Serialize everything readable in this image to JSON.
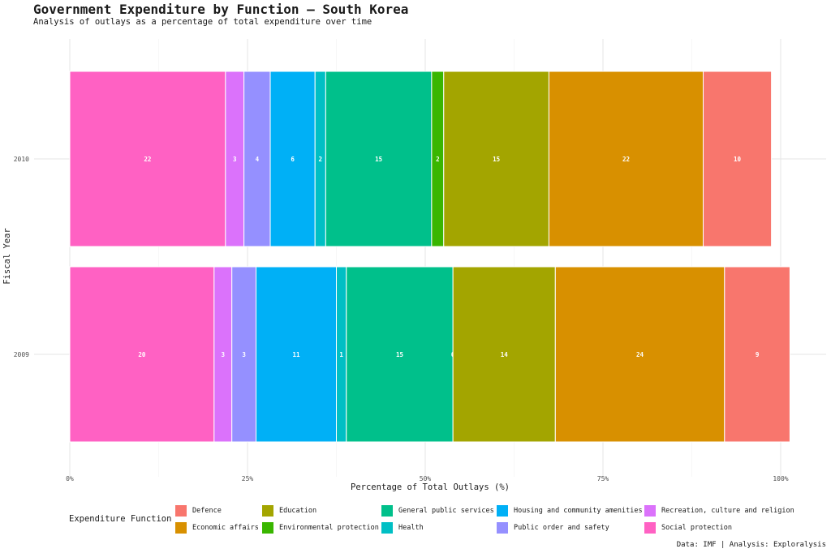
{
  "chart_data": {
    "type": "bar",
    "orientation": "horizontal",
    "stacked": true,
    "title": "Government Expenditure by Function — South Korea",
    "subtitle": "Analysis of outlays as a percentage of total expenditure over time",
    "xlabel": "Percentage of Total Outlays (%)",
    "ylabel": "Fiscal Year",
    "xlim": [
      0,
      100
    ],
    "x_ticks": [
      "0%",
      "25%",
      "50%",
      "75%",
      "100%"
    ],
    "grid": true,
    "categories": [
      "2010",
      "2009"
    ],
    "series": [
      {
        "name": "Social protection",
        "color": "#FF61C3",
        "values": [
          21.9,
          20.3
        ],
        "labels": [
          "22",
          "20"
        ]
      },
      {
        "name": "Recreation, culture and religion",
        "color": "#DB72FB",
        "values": [
          2.6,
          2.5
        ],
        "labels": [
          "3",
          "3"
        ]
      },
      {
        "name": "Public order and safety",
        "color": "#9590FF",
        "values": [
          3.7,
          3.4
        ],
        "labels": [
          "4",
          "3"
        ]
      },
      {
        "name": "Housing and community amenities",
        "color": "#00B0F6",
        "values": [
          6.3,
          11.3
        ],
        "labels": [
          "6",
          "11"
        ]
      },
      {
        "name": "Health",
        "color": "#00BFC4",
        "values": [
          1.5,
          1.4
        ],
        "labels": [
          "2",
          "1"
        ]
      },
      {
        "name": "General public services",
        "color": "#00C08B",
        "values": [
          14.9,
          15.0
        ],
        "labels": [
          "15",
          "15"
        ]
      },
      {
        "name": "Environmental protection",
        "color": "#39B600",
        "values": [
          1.7,
          0.0
        ],
        "labels": [
          "2",
          "0"
        ]
      },
      {
        "name": "Education",
        "color": "#A3A500",
        "values": [
          14.8,
          14.4
        ],
        "labels": [
          "15",
          "14"
        ]
      },
      {
        "name": "Economic affairs",
        "color": "#D89000",
        "values": [
          21.7,
          23.8
        ],
        "labels": [
          "22",
          "24"
        ]
      },
      {
        "name": "Defence",
        "color": "#F8766D",
        "values": [
          9.6,
          9.2
        ],
        "labels": [
          "10",
          "9"
        ]
      }
    ],
    "legend_title": "Expenditure Function",
    "legend_position": "bottom",
    "legend": [
      {
        "name": "Defence",
        "color": "#F8766D"
      },
      {
        "name": "Education",
        "color": "#A3A500"
      },
      {
        "name": "General public services",
        "color": "#00C08B"
      },
      {
        "name": "Housing and community amenities",
        "color": "#00B0F6"
      },
      {
        "name": "Recreation, culture and religion",
        "color": "#DB72FB"
      },
      {
        "name": "Economic affairs",
        "color": "#D89000"
      },
      {
        "name": "Environmental protection",
        "color": "#39B600"
      },
      {
        "name": "Health",
        "color": "#00BFC4"
      },
      {
        "name": "Public order and safety",
        "color": "#9590FF"
      },
      {
        "name": "Social protection",
        "color": "#FF61C3"
      }
    ],
    "caption": "Data: IMF | Analysis: Exploralysis"
  }
}
